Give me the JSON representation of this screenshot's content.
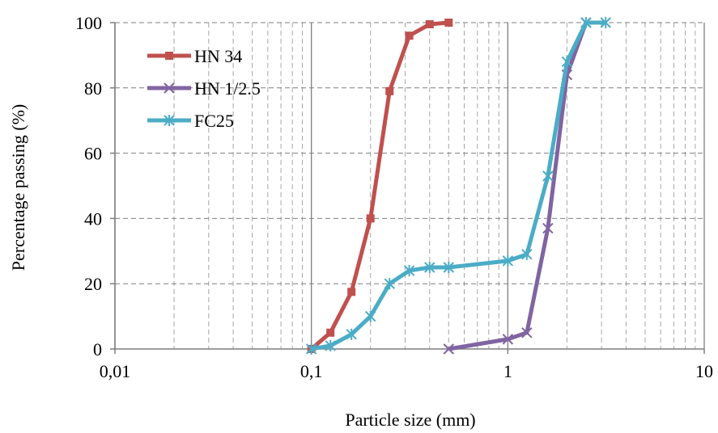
{
  "chart_data": {
    "type": "line",
    "xlabel": "Particle size (mm)",
    "ylabel": "Percentage passing (%)",
    "xscale": "log",
    "xlim": [
      0.01,
      10
    ],
    "ylim": [
      0,
      100
    ],
    "x_ticks": [
      0.01,
      0.1,
      1,
      10
    ],
    "x_tick_labels": [
      "0,01",
      "0,1",
      "1",
      "10"
    ],
    "y_ticks": [
      0,
      20,
      40,
      60,
      80,
      100
    ],
    "y_tick_labels": [
      "0",
      "20",
      "40",
      "60",
      "80",
      "100"
    ],
    "grid": "major solid vertical, minor dashed vertical, dashed horizontal",
    "legend_position": "top-left",
    "series": [
      {
        "name": "HN 34",
        "color": "#c0504d",
        "marker": "square",
        "x": [
          0.1,
          0.125,
          0.16,
          0.2,
          0.25,
          0.315,
          0.4,
          0.5
        ],
        "y": [
          0,
          5,
          17.5,
          40,
          79,
          96,
          99.5,
          100
        ]
      },
      {
        "name": "HN 1/2.5",
        "color": "#8064a2",
        "marker": "x",
        "x": [
          0.5,
          1,
          1.25,
          1.6,
          2,
          2.5
        ],
        "y": [
          0,
          3,
          5,
          37,
          84,
          100
        ]
      },
      {
        "name": "FC25",
        "color": "#4bacc6",
        "marker": "asterisk",
        "x": [
          0.1,
          0.125,
          0.16,
          0.2,
          0.25,
          0.315,
          0.4,
          0.5,
          1,
          1.25,
          1.6,
          2,
          2.5,
          3.15
        ],
        "y": [
          0,
          1,
          4.5,
          10,
          20,
          24,
          25,
          25,
          27,
          29,
          53,
          88,
          100,
          100
        ]
      }
    ]
  }
}
